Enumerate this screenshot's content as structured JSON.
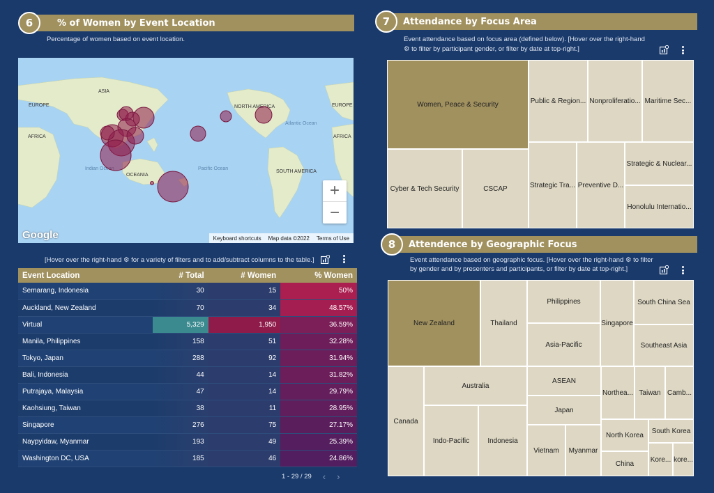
{
  "section6": {
    "number": "6",
    "title": "% of Women by Event Location",
    "description": "Percentage of women based on event location."
  },
  "map": {
    "labels": {
      "asia": "ASIA",
      "europe_left": "EUROPE",
      "europe_right": "EUROPE",
      "africa_left": "AFRICA",
      "africa_right": "AFRICA",
      "north_america": "NORTH AMERICA",
      "atlantic": "Atlantic Ocean",
      "indian": "Indian Ocean",
      "oceania": "OCEANIA",
      "pacific": "Pacific Ocean",
      "south_america": "SOUTH AMERICA"
    },
    "zoom_in": "+",
    "zoom_out": "−",
    "google_logo": "Google",
    "keyboard_shortcuts": "Keyboard shortcuts",
    "map_data": "Map data ©2022",
    "terms": "Terms of Use"
  },
  "table_hint": "[Hover over the right-hand ⚙ for a variety of filters and to add/subtract columns to the table.]",
  "table": {
    "headers": [
      "Event Location",
      "# Total",
      "# Women",
      "% Women"
    ],
    "rows": [
      [
        "Semarang, Indonesia",
        "30",
        "15",
        "50%"
      ],
      [
        "Auckland, New Zealand",
        "70",
        "34",
        "48.57%"
      ],
      [
        "Virtual",
        "5,329",
        "1,950",
        "36.59%"
      ],
      [
        "Manila, Philippines",
        "158",
        "51",
        "32.28%"
      ],
      [
        "Tokyo, Japan",
        "288",
        "92",
        "31.94%"
      ],
      [
        "Bali, Indonesia",
        "44",
        "14",
        "31.82%"
      ],
      [
        "Putrajaya, Malaysia",
        "47",
        "14",
        "29.79%"
      ],
      [
        "Kaohsiung, Taiwan",
        "38",
        "11",
        "28.95%"
      ],
      [
        "Singapore",
        "276",
        "75",
        "27.17%"
      ],
      [
        "Naypyidaw, Myanmar",
        "193",
        "49",
        "25.39%"
      ],
      [
        "Washington DC, USA",
        "185",
        "46",
        "24.86%"
      ]
    ],
    "pager": "1 - 29 / 29"
  },
  "section7": {
    "number": "7",
    "title": "Attendance by Focus Area",
    "description_line1": "Event attendance based on focus area (defined below). [Hover over the right-hand",
    "description_line2": "⚙ to filter by participant gender, or filter by date at top-right.]"
  },
  "focus_areas": [
    "Women, Peace & Security",
    "Public & Region...",
    "Nonproliferatio...",
    "Maritime Sec...",
    "Strategic & Nuclear...",
    "Cyber & Tech Security",
    "CSCAP",
    "Strategic Tra...",
    "Preventive D...",
    "Honolulu Internatio..."
  ],
  "section8": {
    "number": "8",
    "title": "Attendence by Geographic Focus",
    "description_line1": "Event attendance based on geographic focus. [Hover over the right-hand ⚙ to filter",
    "description_line2": "by gender and by presenters and participants, or filter by date at top-right.]"
  },
  "geo_areas": [
    "New Zealand",
    "Thailand",
    "Philippines",
    "Asia-Pacific",
    "Singapore",
    "South China Sea",
    "Southeast Asia",
    "Canada",
    "Australia",
    "Indo-Pacific",
    "Indonesia",
    "ASEAN",
    "Japan",
    "Vietnam",
    "Myanmar",
    "Northea...",
    "Taiwan",
    "Camb...",
    "North Korea",
    "South Korea",
    "China",
    "Kore...",
    "kore..."
  ],
  "colors": {
    "background": "#1a3a6b",
    "accent": "#a1915f",
    "map_water": "#a9d3f2",
    "map_land": "#dfe8c8",
    "bubble": "#8e1b4a"
  }
}
